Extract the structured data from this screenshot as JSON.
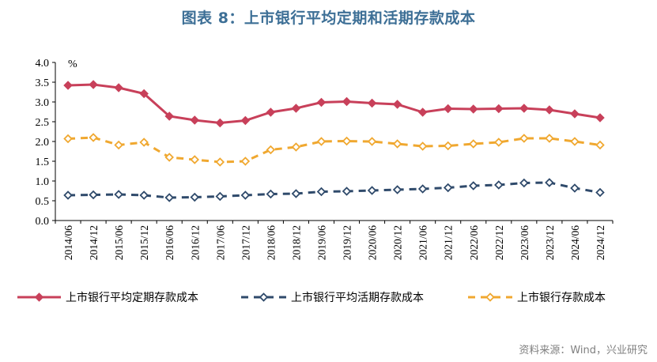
{
  "title": "图表 8：上市银行平均定期和活期存款成本",
  "source": "资料来源：Wind，兴业研究",
  "colors": {
    "title": "#3d6f96",
    "time_deposit": "#c8405a",
    "demand_deposit": "#2f4a6b",
    "total_deposit": "#f0a830"
  },
  "chart_data": {
    "type": "line",
    "ylabel": "%",
    "ylim": [
      0,
      4.0
    ],
    "yticks": [
      "0.0",
      "0.5",
      "1.0",
      "1.5",
      "2.0",
      "2.5",
      "3.0",
      "3.5",
      "4.0"
    ],
    "grid": false,
    "legend_position": "bottom",
    "categories": [
      "2014/06",
      "2014/12",
      "2015/06",
      "2015/12",
      "2016/06",
      "2016/12",
      "2017/06",
      "2017/12",
      "2018/06",
      "2018/12",
      "2019/06",
      "2019/12",
      "2020/06",
      "2020/12",
      "2021/06",
      "2021/12",
      "2022/06",
      "2022/12",
      "2023/06",
      "2023/12",
      "2024/06",
      "2024/12"
    ],
    "series": [
      {
        "name": "上市银行平均定期存款成本",
        "style": "solid",
        "color": "#c8405a",
        "values": [
          3.42,
          3.44,
          3.36,
          3.21,
          2.64,
          2.54,
          2.47,
          2.53,
          2.74,
          2.84,
          2.99,
          3.01,
          2.97,
          2.94,
          2.74,
          2.83,
          2.82,
          2.83,
          2.84,
          2.8,
          2.7,
          2.6
        ]
      },
      {
        "name": "上市银行平均活期存款成本",
        "style": "dash",
        "color": "#2f4a6b",
        "values": [
          0.64,
          0.65,
          0.66,
          0.64,
          0.58,
          0.59,
          0.61,
          0.64,
          0.67,
          0.68,
          0.73,
          0.74,
          0.76,
          0.78,
          0.8,
          0.83,
          0.88,
          0.9,
          0.95,
          0.96,
          0.82,
          0.71
        ]
      },
      {
        "name": "上市银行存款成本",
        "style": "dash",
        "color": "#f0a830",
        "values": [
          2.07,
          2.1,
          1.91,
          1.98,
          1.6,
          1.54,
          1.48,
          1.5,
          1.79,
          1.86,
          2.0,
          2.01,
          2.0,
          1.94,
          1.88,
          1.89,
          1.94,
          1.98,
          2.08,
          2.08,
          2.0,
          1.91
        ]
      }
    ]
  }
}
